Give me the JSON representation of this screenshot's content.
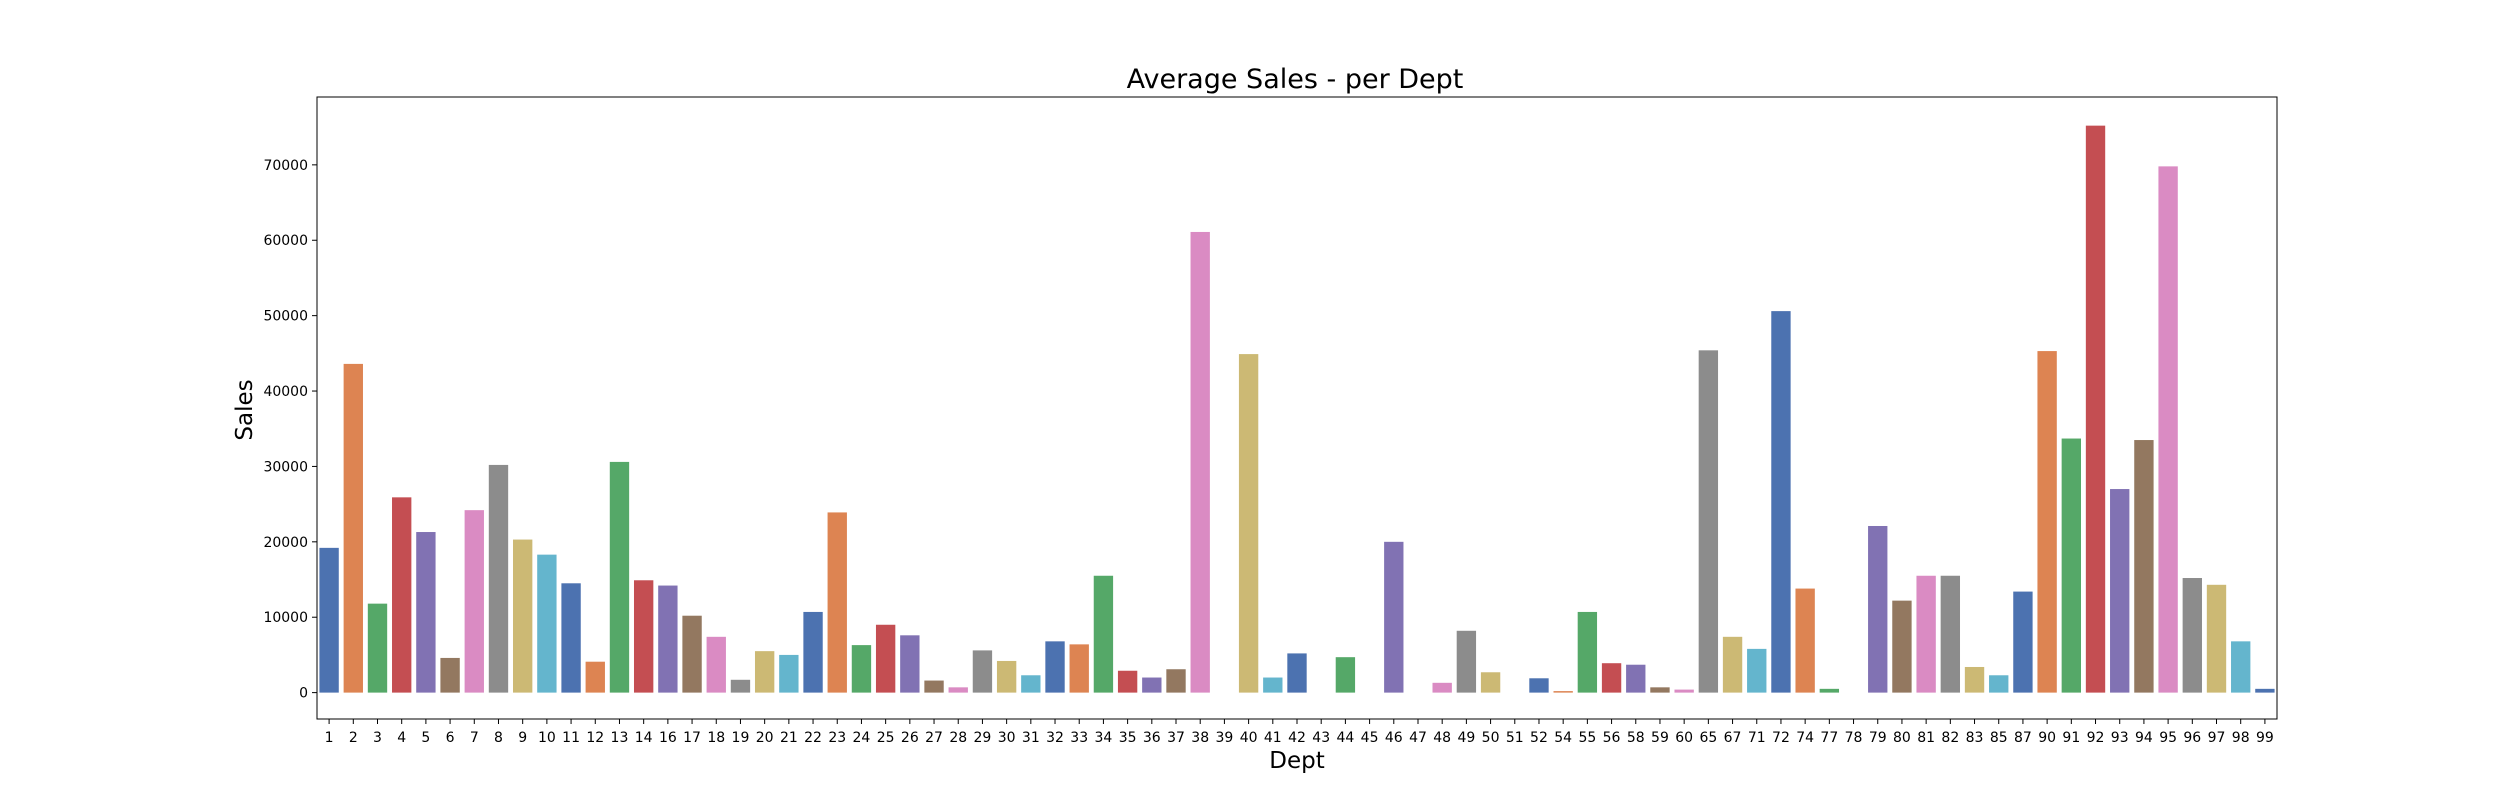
{
  "chart_data": {
    "type": "bar",
    "title": "Average Sales - per Dept",
    "xlabel": "Dept",
    "ylabel": "Sales",
    "ylim": [
      -3500,
      79000
    ],
    "yticks": [
      0,
      10000,
      20000,
      30000,
      40000,
      50000,
      60000,
      70000
    ],
    "grid": false,
    "palette": [
      "#4c72b0",
      "#dd8452",
      "#55a868",
      "#c44e52",
      "#8172b3",
      "#937860",
      "#da8bc3",
      "#8c8c8c",
      "#ccb974",
      "#64b5cd"
    ],
    "categories": [
      "1",
      "2",
      "3",
      "4",
      "5",
      "6",
      "7",
      "8",
      "9",
      "10",
      "11",
      "12",
      "13",
      "14",
      "16",
      "17",
      "18",
      "19",
      "20",
      "21",
      "22",
      "23",
      "24",
      "25",
      "26",
      "27",
      "28",
      "29",
      "30",
      "31",
      "32",
      "33",
      "34",
      "35",
      "36",
      "37",
      "38",
      "39",
      "40",
      "41",
      "42",
      "43",
      "44",
      "45",
      "46",
      "47",
      "48",
      "49",
      "50",
      "51",
      "52",
      "54",
      "55",
      "56",
      "58",
      "59",
      "60",
      "65",
      "67",
      "71",
      "72",
      "74",
      "77",
      "78",
      "79",
      "80",
      "81",
      "82",
      "83",
      "85",
      "87",
      "90",
      "91",
      "92",
      "93",
      "94",
      "95",
      "96",
      "97",
      "98",
      "99"
    ],
    "values": [
      19200,
      43600,
      11800,
      25900,
      21300,
      4600,
      24200,
      30200,
      20300,
      18300,
      14500,
      4100,
      30600,
      14900,
      14200,
      10200,
      7400,
      1700,
      5500,
      5000,
      10700,
      23900,
      6300,
      9000,
      7600,
      1600,
      700,
      5600,
      4200,
      2300,
      6800,
      6400,
      15500,
      2900,
      2000,
      3100,
      61100,
      0,
      44900,
      2000,
      5200,
      0,
      4700,
      0,
      20000,
      0,
      1300,
      8200,
      2700,
      0,
      1900,
      200,
      10700,
      3900,
      3700,
      700,
      400,
      45400,
      7400,
      5800,
      50600,
      13800,
      500,
      0,
      22100,
      12200,
      15500,
      15500,
      3400,
      2300,
      13400,
      45300,
      33700,
      75200,
      27000,
      33500,
      69800,
      15200,
      14300,
      6800,
      500
    ]
  }
}
